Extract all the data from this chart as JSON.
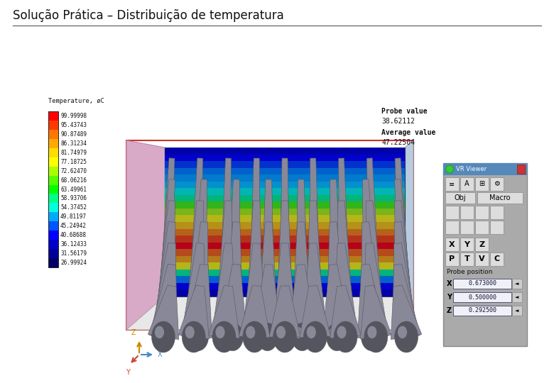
{
  "title": "Solução Prática – Distribuição de temperatura",
  "title_fontsize": 12,
  "background_color": "#ffffff",
  "colorbar_label": "Temperature, øC",
  "colorbar_values": [
    "99.99998",
    "95.43743",
    "90.87489",
    "86.31234",
    "81.74979",
    "77.18725",
    "72.62470",
    "68.06216",
    "63.49961",
    "58.93706",
    "54.37452",
    "49.81197",
    "45.24942",
    "40.68688",
    "36.12433",
    "31.56179",
    "26.99924"
  ],
  "colorbar_colors": [
    "#ff0000",
    "#ff3a00",
    "#ff7700",
    "#ffaa00",
    "#ffdd00",
    "#ffff00",
    "#aaff00",
    "#55ff00",
    "#00ff00",
    "#00ff88",
    "#00ffdd",
    "#00aaff",
    "#0055ff",
    "#0000ff",
    "#0000cc",
    "#000099",
    "#000066"
  ],
  "probe_value": "38.62112",
  "average_value": "47.22504",
  "vr_viewer_title": "VR Viewer",
  "probe_xyz": [
    "0.673000",
    "0.500000",
    "0.292500"
  ]
}
